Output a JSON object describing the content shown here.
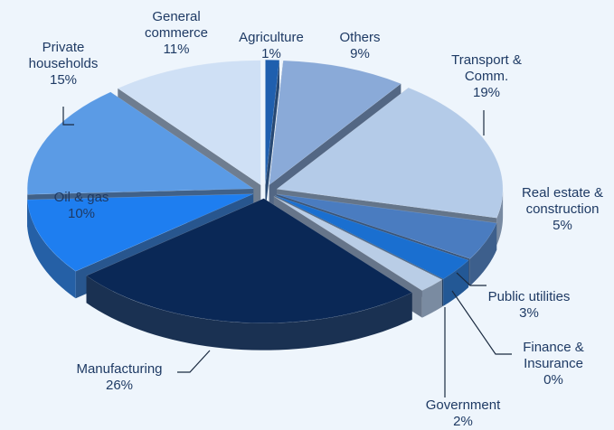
{
  "chart_data": {
    "type": "pie",
    "categories": [
      "Agriculture",
      "Others",
      "Transport & Comm.",
      "Real estate & construction",
      "Public utilities",
      "Finance & Insurance",
      "Government",
      "Manufacturing",
      "Oil & gas",
      "Private households",
      "General commerce"
    ],
    "values": [
      1,
      9,
      19,
      5,
      3,
      0,
      2,
      26,
      10,
      15,
      11
    ],
    "value_labels": [
      "1%",
      "9%",
      "19%",
      "5%",
      "3%",
      "0%",
      "2%",
      "26%",
      "10%",
      "15%",
      "11%"
    ],
    "colors": [
      "#1f5fae",
      "#8aaad8",
      "#b4cbe8",
      "#4a7cc0",
      "#1a6fd0",
      "#0d2f5e",
      "#b9cde6",
      "#0a2856",
      "#1e7ef0",
      "#5b9be5",
      "#cfe0f5"
    ]
  }
}
